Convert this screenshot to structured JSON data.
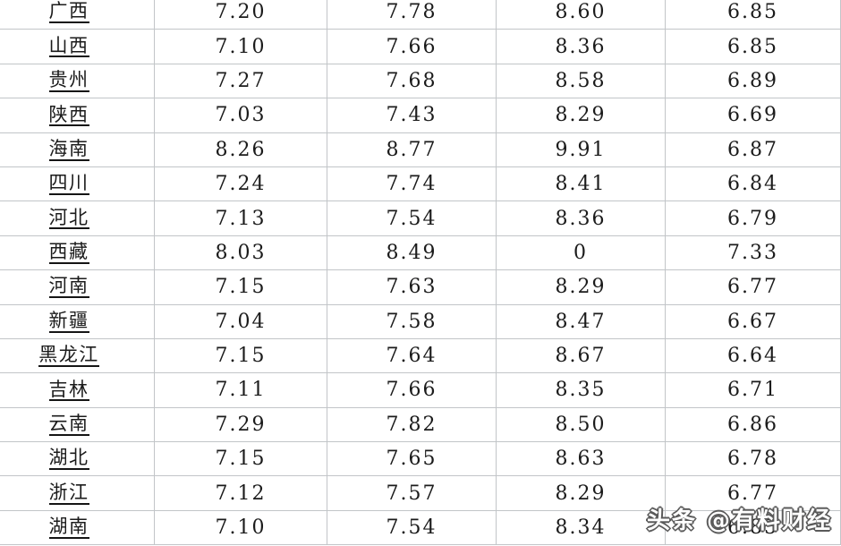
{
  "table": {
    "rows": [
      {
        "province": "广西",
        "values": [
          "7.20",
          "7.78",
          "8.60",
          "6.85"
        ]
      },
      {
        "province": "山西",
        "values": [
          "7.10",
          "7.66",
          "8.36",
          "6.85"
        ]
      },
      {
        "province": "贵州",
        "values": [
          "7.27",
          "7.68",
          "8.58",
          "6.89"
        ]
      },
      {
        "province": "陕西",
        "values": [
          "7.03",
          "7.43",
          "8.29",
          "6.69"
        ]
      },
      {
        "province": "海南",
        "values": [
          "8.26",
          "8.77",
          "9.91",
          "6.87"
        ]
      },
      {
        "province": "四川",
        "values": [
          "7.24",
          "7.74",
          "8.41",
          "6.84"
        ]
      },
      {
        "province": "河北",
        "values": [
          "7.13",
          "7.54",
          "8.36",
          "6.79"
        ]
      },
      {
        "province": "西藏",
        "values": [
          "8.03",
          "8.49",
          "0",
          "7.33"
        ]
      },
      {
        "province": "河南",
        "values": [
          "7.15",
          "7.63",
          "8.29",
          "6.77"
        ]
      },
      {
        "province": "新疆",
        "values": [
          "7.04",
          "7.58",
          "8.47",
          "6.67"
        ]
      },
      {
        "province": "黑龙江",
        "values": [
          "7.15",
          "7.64",
          "8.67",
          "6.64"
        ]
      },
      {
        "province": "吉林",
        "values": [
          "7.11",
          "7.66",
          "8.35",
          "6.71"
        ]
      },
      {
        "province": "云南",
        "values": [
          "7.29",
          "7.82",
          "8.50",
          "6.86"
        ]
      },
      {
        "province": "湖北",
        "values": [
          "7.15",
          "7.65",
          "8.63",
          "6.78"
        ]
      },
      {
        "province": "浙江",
        "values": [
          "7.12",
          "7.57",
          "8.29",
          "6.77"
        ]
      },
      {
        "province": "湖南",
        "values": [
          "7.10",
          "7.54",
          "8.34",
          "6.85"
        ]
      }
    ]
  },
  "watermark": {
    "text": "头条 @有料财经"
  },
  "colors": {
    "grid_line": "#c2c5c8",
    "text": "#1b1b1b",
    "underline": "#151515",
    "watermark_fill": "#ffffff",
    "watermark_outline": "#5a5a5a"
  },
  "chart_data": {
    "type": "table",
    "rows": [
      [
        "广西",
        7.2,
        7.78,
        8.6,
        6.85
      ],
      [
        "山西",
        7.1,
        7.66,
        8.36,
        6.85
      ],
      [
        "贵州",
        7.27,
        7.68,
        8.58,
        6.89
      ],
      [
        "陕西",
        7.03,
        7.43,
        8.29,
        6.69
      ],
      [
        "海南",
        8.26,
        8.77,
        9.91,
        6.87
      ],
      [
        "四川",
        7.24,
        7.74,
        8.41,
        6.84
      ],
      [
        "河北",
        7.13,
        7.54,
        8.36,
        6.79
      ],
      [
        "西藏",
        8.03,
        8.49,
        0,
        7.33
      ],
      [
        "河南",
        7.15,
        7.63,
        8.29,
        6.77
      ],
      [
        "新疆",
        7.04,
        7.58,
        8.47,
        6.67
      ],
      [
        "黑龙江",
        7.15,
        7.64,
        8.67,
        6.64
      ],
      [
        "吉林",
        7.11,
        7.66,
        8.35,
        6.71
      ],
      [
        "云南",
        7.29,
        7.82,
        8.5,
        6.86
      ],
      [
        "湖北",
        7.15,
        7.65,
        8.63,
        6.78
      ],
      [
        "浙江",
        7.12,
        7.57,
        8.29,
        6.77
      ],
      [
        "湖南",
        7.1,
        7.54,
        8.34,
        6.85
      ]
    ],
    "layout": {
      "header_visible": false,
      "grid": true,
      "columns_cropped": "table cropped at top; first row partially cut, bottom-right overlaid by watermark"
    }
  }
}
